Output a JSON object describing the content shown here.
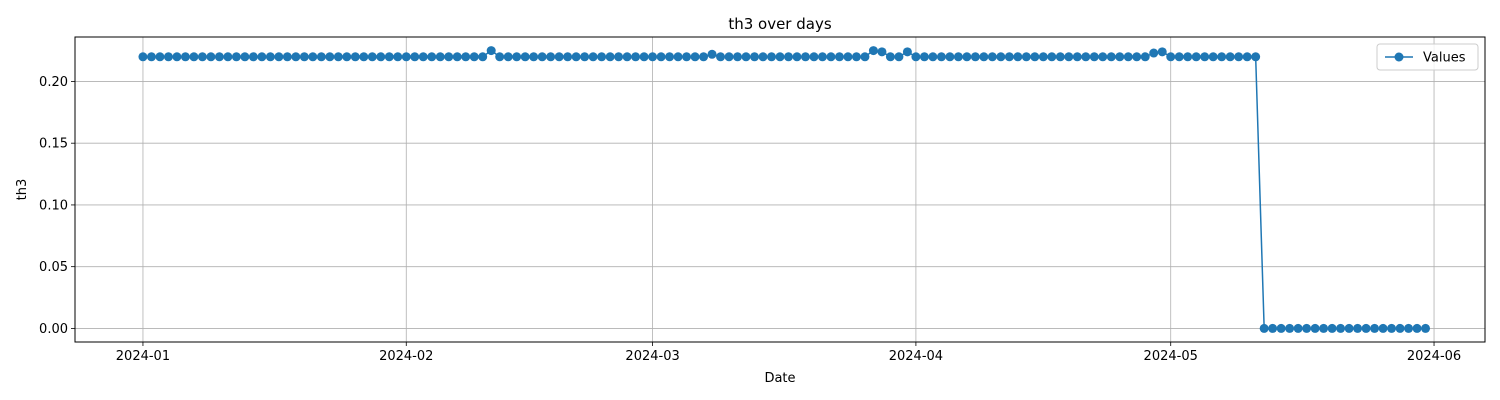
{
  "chart_data": {
    "type": "line",
    "title": "th3 over days",
    "xlabel": "Date",
    "ylabel": "th3",
    "x_start": "2024-01-01",
    "x_end": "2024-05-31",
    "xlim": [
      "2023-12-24",
      "2024-06-07"
    ],
    "ylim": [
      -0.011,
      0.236
    ],
    "xticks": [
      "2024-01-01",
      "2024-02-01",
      "2024-03-01",
      "2024-04-01",
      "2024-05-01",
      "2024-06-01"
    ],
    "xtick_labels": [
      "2024-01",
      "2024-02",
      "2024-03",
      "2024-04",
      "2024-05",
      "2024-06"
    ],
    "yticks": [
      0.0,
      0.05,
      0.1,
      0.15,
      0.2
    ],
    "ytick_labels": [
      "0.00",
      "0.05",
      "0.10",
      "0.15",
      "0.20"
    ],
    "grid": true,
    "legend_position": "top-right",
    "series": [
      {
        "name": "Values",
        "color": "#1f77b4",
        "marker": "circle",
        "values": [
          0.22,
          0.22,
          0.22,
          0.22,
          0.22,
          0.22,
          0.22,
          0.22,
          0.22,
          0.22,
          0.22,
          0.22,
          0.22,
          0.22,
          0.22,
          0.22,
          0.22,
          0.22,
          0.22,
          0.22,
          0.22,
          0.22,
          0.22,
          0.22,
          0.22,
          0.22,
          0.22,
          0.22,
          0.22,
          0.22,
          0.22,
          0.22,
          0.22,
          0.22,
          0.22,
          0.22,
          0.22,
          0.22,
          0.22,
          0.22,
          0.22,
          0.225,
          0.22,
          0.22,
          0.22,
          0.22,
          0.22,
          0.22,
          0.22,
          0.22,
          0.22,
          0.22,
          0.22,
          0.22,
          0.22,
          0.22,
          0.22,
          0.22,
          0.22,
          0.22,
          0.22,
          0.22,
          0.22,
          0.22,
          0.22,
          0.22,
          0.22,
          0.222,
          0.22,
          0.22,
          0.22,
          0.22,
          0.22,
          0.22,
          0.22,
          0.22,
          0.22,
          0.22,
          0.22,
          0.22,
          0.22,
          0.22,
          0.22,
          0.22,
          0.22,
          0.22,
          0.225,
          0.224,
          0.22,
          0.22,
          0.224,
          0.22,
          0.22,
          0.22,
          0.22,
          0.22,
          0.22,
          0.22,
          0.22,
          0.22,
          0.22,
          0.22,
          0.22,
          0.22,
          0.22,
          0.22,
          0.22,
          0.22,
          0.22,
          0.22,
          0.22,
          0.22,
          0.22,
          0.22,
          0.22,
          0.22,
          0.22,
          0.22,
          0.22,
          0.223,
          0.224,
          0.22,
          0.22,
          0.22,
          0.22,
          0.22,
          0.22,
          0.22,
          0.22,
          0.22,
          0.22,
          0.22,
          0.0,
          0.0,
          0.0,
          0.0,
          0.0,
          0.0,
          0.0,
          0.0,
          0.0,
          0.0,
          0.0,
          0.0,
          0.0,
          0.0,
          0.0,
          0.0,
          0.0,
          0.0,
          0.0,
          0.0
        ]
      }
    ]
  }
}
